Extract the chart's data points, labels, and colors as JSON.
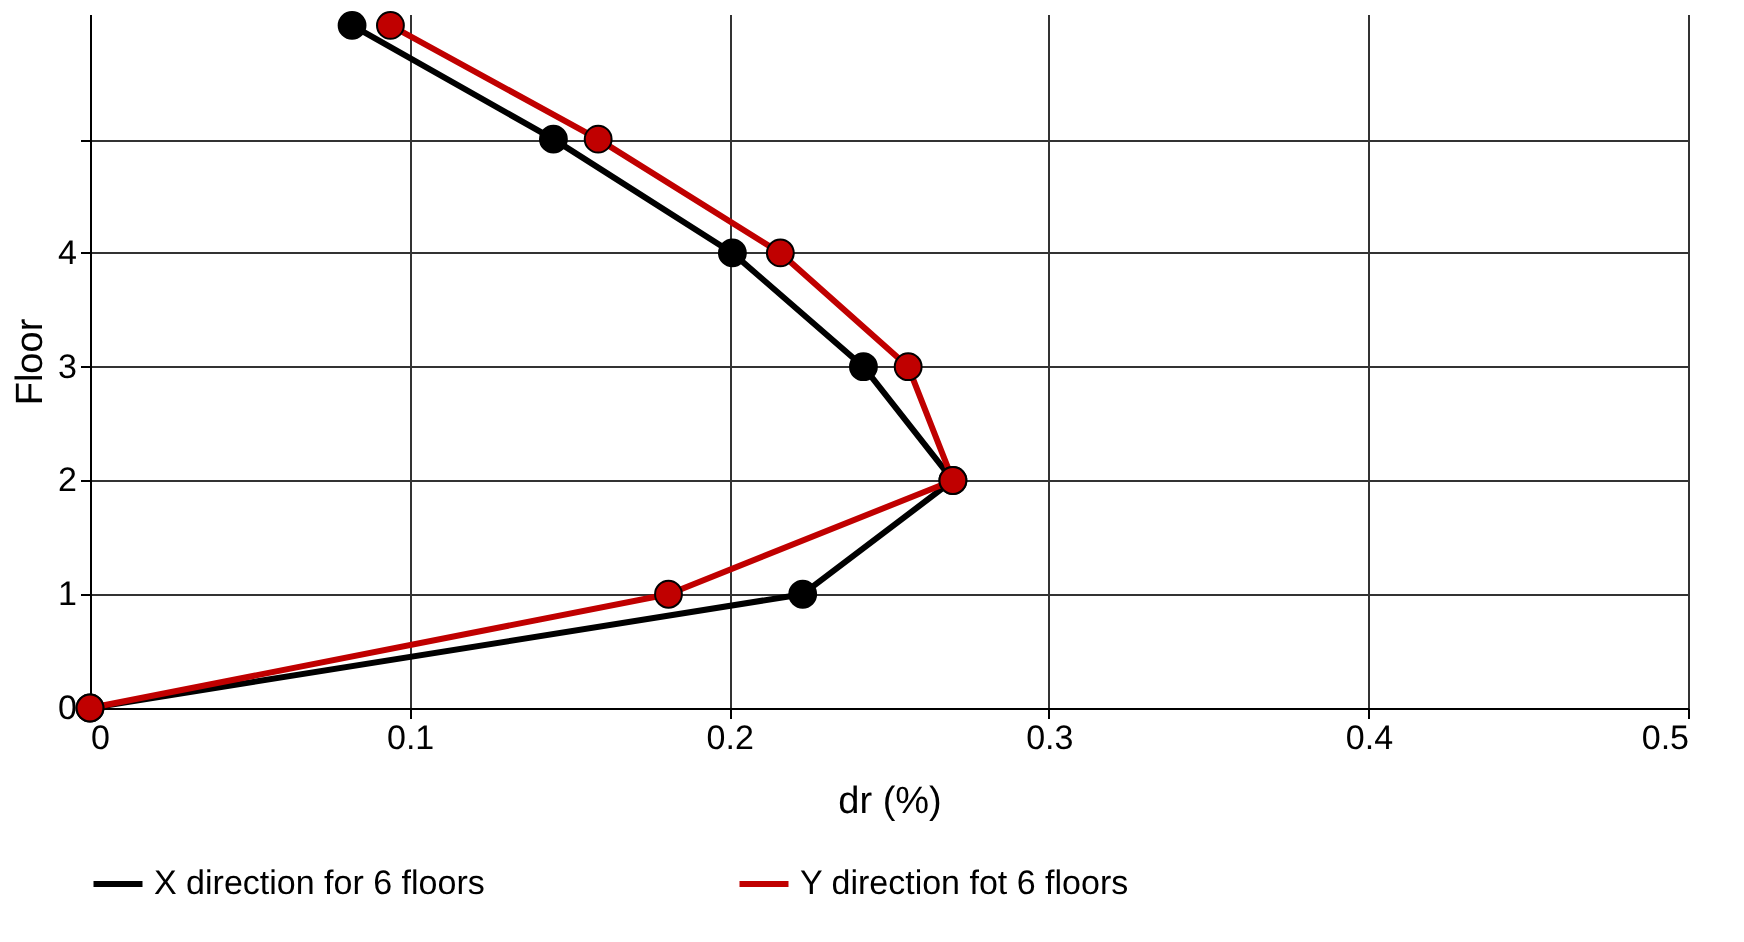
{
  "chart_data": {
    "type": "line",
    "xlabel": "dr (%)",
    "ylabel": "Floor",
    "xlim": [
      0,
      0.5
    ],
    "xticks": [
      0,
      0.1,
      0.2,
      0.3,
      0.4,
      0.5
    ],
    "ylim": [
      0,
      6.1
    ],
    "yticks": [
      0,
      1,
      2,
      3,
      4,
      {
        "value": 5,
        "label": null
      }
    ],
    "grid": true,
    "legend": "bottom",
    "marker": "circle",
    "line_style": "solid",
    "series": [
      {
        "name": "X direction for 6 floors",
        "color": "#000000",
        "x": [
          0,
          0.223,
          0.27,
          0.242,
          0.201,
          0.145,
          0.082
        ],
        "values": [
          0,
          1,
          2,
          3,
          4,
          5,
          6
        ]
      },
      {
        "name": "Y direction fot 6 floors",
        "color": "#c00000",
        "x": [
          0,
          0.181,
          0.27,
          0.256,
          0.216,
          0.159,
          0.094
        ],
        "values": [
          0,
          1,
          2,
          3,
          4,
          5,
          6
        ]
      }
    ]
  }
}
